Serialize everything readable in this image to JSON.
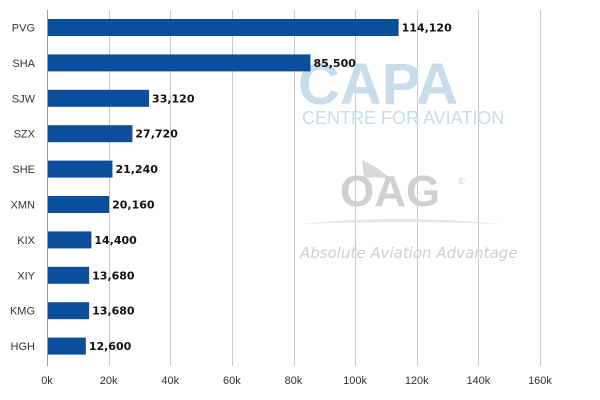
{
  "chart_data": {
    "type": "bar",
    "orientation": "horizontal",
    "categories": [
      "PVG",
      "SHA",
      "SJW",
      "SZX",
      "SHE",
      "XMN",
      "KIX",
      "XIY",
      "KMG",
      "HGH"
    ],
    "values": [
      114120,
      85500,
      33120,
      27720,
      21240,
      20160,
      14400,
      13680,
      13680,
      12600
    ],
    "data_labels": [
      "114,120",
      "85,500",
      "33,120",
      "27,720",
      "21,240",
      "20,160",
      "14,400",
      "13,680",
      "13,680",
      "12,600"
    ],
    "xlim": [
      0,
      160000
    ],
    "xticks": [
      0,
      20000,
      40000,
      60000,
      80000,
      100000,
      120000,
      140000,
      160000
    ],
    "xtick_labels": [
      "0k",
      "20k",
      "40k",
      "60k",
      "80k",
      "100k",
      "120k",
      "140k",
      "160k"
    ],
    "grid": true,
    "bar_color": "#0b4f9c",
    "title": "",
    "xlabel": "",
    "ylabel": ""
  },
  "watermarks": {
    "capa_text": "CAPA",
    "capa_subtitle": "CENTRE FOR AVIATION",
    "oag_text": "OAG",
    "oag_mark": "®",
    "oag_tagline": "Absolute Aviation Advantage"
  }
}
